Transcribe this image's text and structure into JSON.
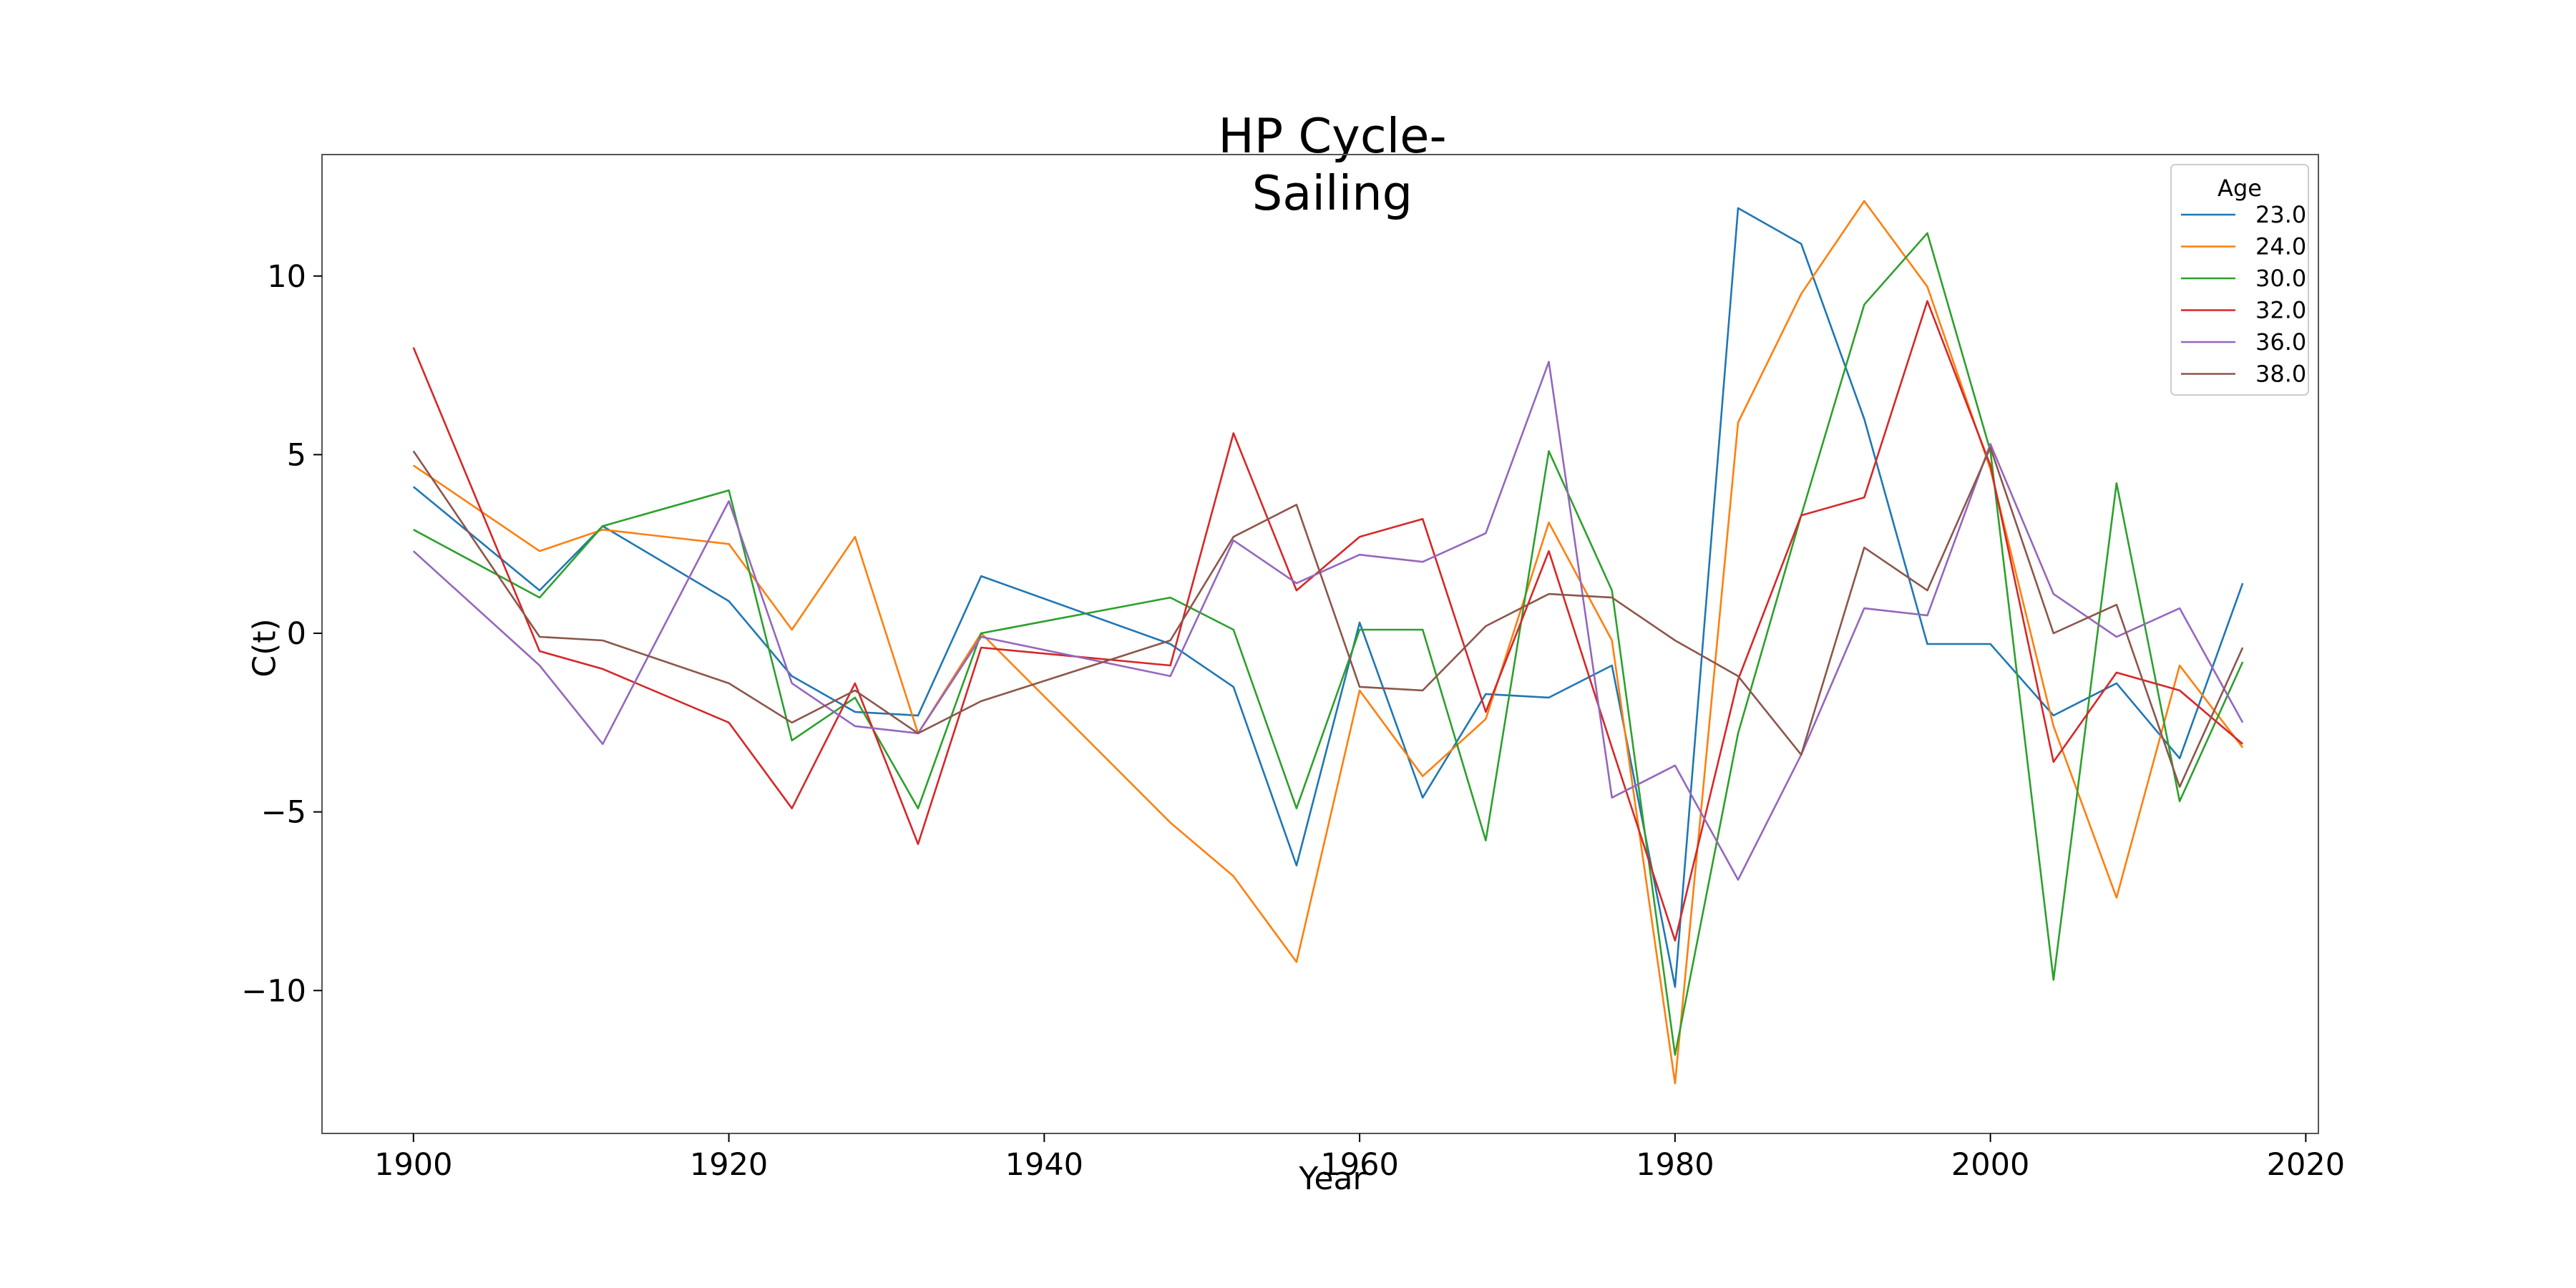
{
  "chart_data": {
    "type": "line",
    "title": "HP Cycle-Sailing",
    "xlabel": "Year",
    "ylabel": "C(t)",
    "xlim": [
      1894.2,
      2020.8
    ],
    "ylim": [
      -14.0,
      13.4
    ],
    "xticks": [
      1900,
      1920,
      1940,
      1960,
      1980,
      2000,
      2020
    ],
    "yticks": [
      10,
      5,
      0,
      -5,
      -10
    ],
    "ytick_labels": [
      "10",
      "5",
      "0",
      "−5",
      "−10"
    ],
    "grid": false,
    "legend": {
      "title": "Age",
      "placement": "top-right"
    },
    "series": [
      {
        "name": "23.0",
        "color": "#1f77b4",
        "x": [
          1900,
          1908,
          1912,
          1920,
          1924,
          1928,
          1932,
          1936,
          1948,
          1952,
          1956,
          1960,
          1964,
          1968,
          1972,
          1976,
          1980,
          1984,
          1988,
          1992,
          1996,
          2000,
          2004,
          2008,
          2012,
          2016
        ],
        "y": [
          4.1,
          1.2,
          3.0,
          0.9,
          -1.2,
          -2.2,
          -2.3,
          1.6,
          -0.3,
          -1.5,
          -6.5,
          0.3,
          -4.6,
          -1.7,
          -1.8,
          -0.9,
          -9.9,
          11.9,
          10.9,
          6.0,
          -0.3,
          -0.3,
          -2.3,
          -1.4,
          -3.5,
          1.4
        ]
      },
      {
        "name": "24.0",
        "color": "#ff7f0e",
        "x": [
          1900,
          1908,
          1912,
          1920,
          1924,
          1928,
          1932,
          1936,
          1948,
          1952,
          1956,
          1960,
          1964,
          1968,
          1972,
          1976,
          1980,
          1984,
          1988,
          1992,
          1996,
          2000,
          2004,
          2008,
          2012,
          2016
        ],
        "y": [
          4.7,
          2.3,
          2.9,
          2.5,
          0.1,
          2.7,
          -2.8,
          0.0,
          -5.3,
          -6.8,
          -9.2,
          -1.6,
          -4.0,
          -2.4,
          3.1,
          -0.2,
          -12.6,
          5.9,
          9.5,
          12.1,
          9.7,
          4.6,
          -2.6,
          -7.4,
          -0.9,
          -3.2
        ]
      },
      {
        "name": "30.0",
        "color": "#2ca02c",
        "x": [
          1900,
          1908,
          1912,
          1920,
          1924,
          1928,
          1932,
          1936,
          1948,
          1952,
          1956,
          1960,
          1964,
          1968,
          1972,
          1976,
          1980,
          1984,
          1988,
          1992,
          1996,
          2000,
          2004,
          2008,
          2012,
          2016
        ],
        "y": [
          2.9,
          1.0,
          3.0,
          4.0,
          -3.0,
          -1.8,
          -4.9,
          0.0,
          1.0,
          0.1,
          -4.9,
          0.1,
          0.1,
          -5.8,
          5.1,
          1.2,
          -11.8,
          -2.8,
          3.3,
          9.2,
          11.2,
          5.1,
          -9.7,
          4.2,
          -4.7,
          -0.8
        ]
      },
      {
        "name": "32.0",
        "color": "#d62728",
        "x": [
          1900,
          1908,
          1912,
          1920,
          1924,
          1928,
          1932,
          1936,
          1948,
          1952,
          1956,
          1960,
          1964,
          1968,
          1972,
          1976,
          1980,
          1984,
          1988,
          1992,
          1996,
          2000,
          2004,
          2008,
          2012,
          2016
        ],
        "y": [
          8.0,
          -0.5,
          -1.0,
          -2.5,
          -4.9,
          -1.4,
          -5.9,
          -0.4,
          -0.9,
          5.6,
          1.2,
          2.7,
          3.2,
          -2.2,
          2.3,
          -3.2,
          -8.6,
          -1.3,
          3.3,
          3.8,
          9.3,
          4.7,
          -3.6,
          -1.1,
          -1.6,
          -3.1
        ]
      },
      {
        "name": "36.0",
        "color": "#9467bd",
        "x": [
          1900,
          1908,
          1912,
          1920,
          1924,
          1928,
          1932,
          1936,
          1948,
          1952,
          1956,
          1960,
          1964,
          1968,
          1972,
          1976,
          1980,
          1984,
          1988,
          1992,
          1996,
          2000,
          2004,
          2008,
          2012,
          2016
        ],
        "y": [
          2.3,
          -0.9,
          -3.1,
          3.7,
          -1.4,
          -2.6,
          -2.8,
          -0.1,
          -1.2,
          2.6,
          1.4,
          2.2,
          2.0,
          2.8,
          7.6,
          -4.6,
          -3.7,
          -6.9,
          -3.4,
          0.7,
          0.5,
          5.3,
          1.1,
          -0.1,
          0.7,
          -2.5
        ]
      },
      {
        "name": "38.0",
        "color": "#8c564b",
        "x": [
          1900,
          1908,
          1912,
          1920,
          1924,
          1928,
          1932,
          1936,
          1948,
          1952,
          1956,
          1960,
          1964,
          1968,
          1972,
          1976,
          1980,
          1984,
          1988,
          1992,
          1996,
          2000,
          2004,
          2008,
          2012,
          2016
        ],
        "y": [
          5.1,
          -0.1,
          -0.2,
          -1.4,
          -2.5,
          -1.6,
          -2.8,
          -1.9,
          -0.2,
          2.7,
          3.6,
          -1.5,
          -1.6,
          0.2,
          1.1,
          1.0,
          -0.2,
          -1.2,
          -3.4,
          2.4,
          1.2,
          5.2,
          -0.0,
          0.8,
          -4.3,
          -0.4
        ]
      }
    ]
  }
}
